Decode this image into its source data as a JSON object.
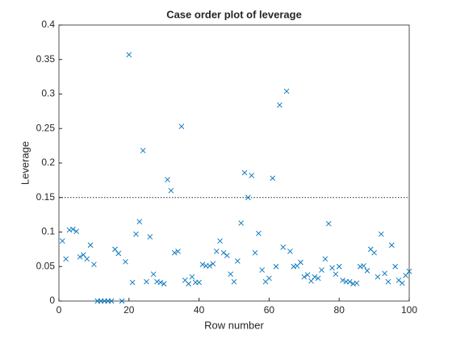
{
  "chart_data": {
    "type": "scatter",
    "title": "Case order plot of leverage",
    "x_label": "Row number",
    "y_label": "Leverage",
    "x": [
      1,
      2,
      3,
      4,
      5,
      6,
      7,
      8,
      9,
      10,
      11,
      12,
      13,
      14,
      15,
      16,
      17,
      18,
      19,
      20,
      21,
      22,
      23,
      24,
      25,
      26,
      27,
      28,
      29,
      30,
      31,
      32,
      33,
      34,
      35,
      36,
      37,
      38,
      39,
      40,
      41,
      42,
      43,
      44,
      45,
      46,
      47,
      48,
      49,
      50,
      51,
      52,
      53,
      54,
      55,
      56,
      57,
      58,
      59,
      60,
      61,
      62,
      63,
      64,
      65,
      66,
      67,
      68,
      69,
      70,
      71,
      72,
      73,
      74,
      75,
      76,
      77,
      78,
      79,
      80,
      81,
      82,
      83,
      84,
      85,
      86,
      87,
      88,
      89,
      90,
      91,
      92,
      93,
      94,
      95,
      96,
      97,
      98,
      99,
      100
    ],
    "series": [
      {
        "name": "Leverage",
        "color": "#0072bd",
        "values": [
          0.087,
          0.061,
          0.103,
          0.104,
          0.101,
          0.064,
          0.067,
          0.061,
          0.081,
          0.053,
          0,
          0,
          0,
          0,
          0,
          0.075,
          0.069,
          0,
          0.057,
          0.357,
          0.027,
          0.097,
          0.115,
          0.218,
          0.028,
          0.093,
          0.039,
          0.028,
          0.027,
          0.025,
          0.176,
          0.16,
          0.07,
          0.072,
          0.253,
          0.03,
          0.025,
          0.035,
          0.027,
          0.027,
          0.053,
          0.051,
          0.051,
          0.054,
          0.072,
          0.087,
          0.07,
          0.066,
          0.039,
          0.028,
          0.058,
          0.113,
          0.186,
          0.15,
          0.182,
          0.07,
          0.098,
          0.045,
          0.028,
          0.033,
          0.178,
          0.05,
          0.284,
          0.078,
          0.304,
          0.072,
          0.05,
          0.051,
          0.056,
          0.035,
          0.038,
          0.029,
          0.035,
          0.033,
          0.045,
          0.061,
          0.112,
          0.048,
          0.039,
          0.05,
          0.03,
          0.028,
          0.028,
          0.025,
          0.026,
          0.05,
          0.051,
          0.044,
          0.075,
          0.07,
          0.035,
          0.097,
          0.04,
          0.028,
          0.081,
          0.05,
          0.03,
          0.026,
          0.037,
          0.043
        ]
      }
    ],
    "reference_line": 0.15,
    "xlim": [
      0,
      100
    ],
    "xticks": [
      0,
      20,
      40,
      60,
      80,
      100
    ],
    "ylim": [
      0,
      0.4
    ],
    "yticks": [
      0,
      0.05,
      0.1,
      0.15,
      0.2,
      0.25,
      0.3,
      0.35,
      0.4
    ]
  }
}
